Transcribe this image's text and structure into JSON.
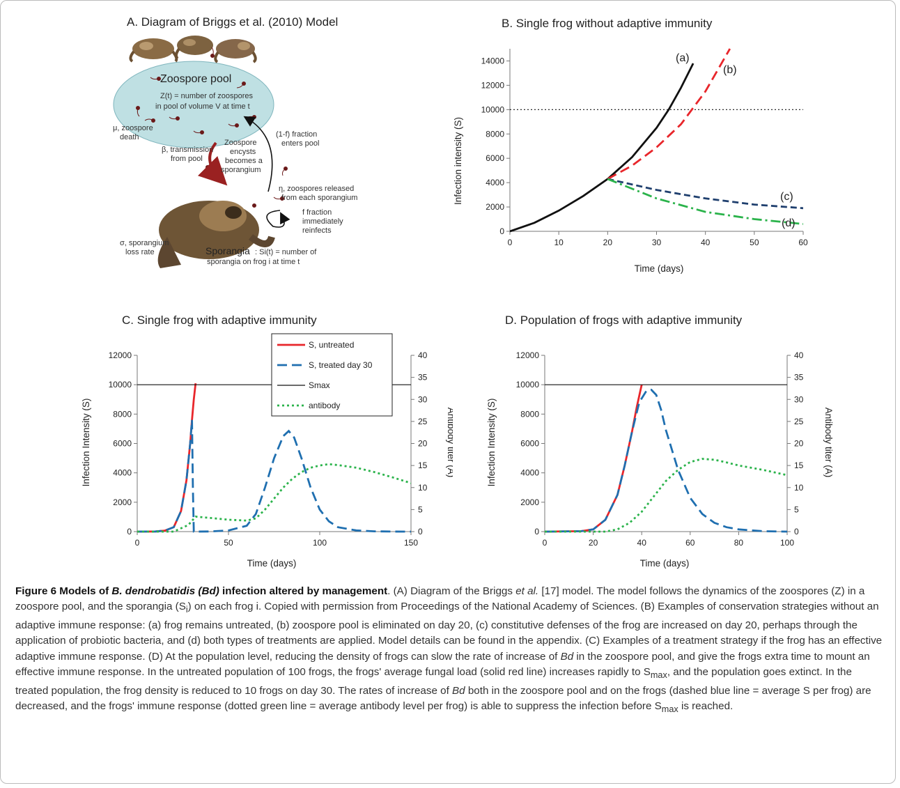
{
  "panels": {
    "a": {
      "title": "A. Diagram of Briggs et al. (2010) Model"
    },
    "b": {
      "title": "B. Single frog without adaptive immunity"
    },
    "c": {
      "title": "C. Single frog with adaptive immunity"
    },
    "d": {
      "title": "D. Population of frogs with adaptive immunity"
    }
  },
  "diagram": {
    "pool_title": "Zoospore pool",
    "pool_desc_1": "Z(t) = number of zoospores",
    "pool_desc_2": "in pool  of volume V at time t",
    "mu_1": "μ, zoospore",
    "mu_2": "death",
    "frac_1": "(1-f) fraction",
    "frac_2": "enters pool",
    "beta_1": "β, transmission",
    "beta_2": "from pool",
    "encyst_1": "Zoospore",
    "encyst_2": "encysts",
    "encyst_3": "becomes a",
    "encyst_4": "sporangium",
    "eta_1": "η, zoospores released",
    "eta_2": "from each sporangium",
    "reinf_1": "f fraction",
    "reinf_2": "immediately",
    "reinf_3": "reinfects",
    "sigma_1": "σ, sporangium",
    "sigma_2": "loss rate",
    "spor_title": "Sporangia",
    "spor_desc_1": ": Si(t) = number of",
    "spor_desc_2": "sporangia on frog i at time t"
  },
  "chart_data": [
    {
      "id": "B",
      "type": "line",
      "title": "B. Single frog without adaptive immunity",
      "xlabel": "Time (days)",
      "ylabel": "Infection intensity (S)",
      "xlim": [
        0,
        60
      ],
      "ylim": [
        0,
        15000
      ],
      "xticks": [
        0,
        10,
        20,
        30,
        40,
        50,
        60
      ],
      "yticks": [
        0,
        2000,
        4000,
        6000,
        8000,
        10000,
        12000,
        14000
      ],
      "hline": 10000,
      "series": [
        {
          "name": "(a)",
          "color": "#111111",
          "dash": "",
          "x": [
            0,
            5,
            10,
            15,
            20,
            25,
            30,
            32.5,
            35,
            37.5
          ],
          "y": [
            0,
            700,
            1700,
            2900,
            4300,
            6100,
            8500,
            10000,
            11800,
            13800
          ]
        },
        {
          "name": "(b)",
          "color": "#e8262b",
          "dash": "14,7",
          "x": [
            20,
            25,
            30,
            35,
            40,
            45
          ],
          "y": [
            4300,
            5400,
            6900,
            8800,
            11500,
            15000
          ]
        },
        {
          "name": "(c)",
          "color": "#1f3f6e",
          "dash": "9,5",
          "x": [
            20,
            30,
            40,
            50,
            60
          ],
          "y": [
            4300,
            3400,
            2700,
            2200,
            1900
          ]
        },
        {
          "name": "(d)",
          "color": "#2bb34b",
          "dash": "14,5,3,5",
          "x": [
            20,
            30,
            40,
            50,
            60
          ],
          "y": [
            4300,
            2700,
            1600,
            1000,
            600
          ]
        }
      ]
    },
    {
      "id": "C",
      "type": "line",
      "title": "C. Single frog with adaptive immunity",
      "xlabel": "Time (days)",
      "ylabel": "Infection Intensity (S)",
      "y2label": "Antibody titer (A)",
      "xlim": [
        0,
        150
      ],
      "ylim": [
        0,
        12000
      ],
      "y2lim": [
        0,
        40
      ],
      "xticks": [
        0,
        50,
        100,
        150
      ],
      "yticks": [
        0,
        2000,
        4000,
        6000,
        8000,
        10000,
        12000
      ],
      "y2ticks": [
        0,
        5,
        10,
        15,
        20,
        25,
        30,
        35,
        40
      ],
      "legend": [
        "S, untreated",
        "S, treated day 30",
        "Smax",
        "antibody"
      ],
      "series": [
        {
          "name": "S, untreated",
          "color": "#e8262b",
          "dash": "",
          "axis": "y",
          "x": [
            0,
            10,
            15,
            20,
            24,
            27,
            29,
            30,
            31,
            32
          ],
          "y": [
            0,
            10,
            60,
            300,
            1400,
            3500,
            6000,
            7600,
            9000,
            10100
          ]
        },
        {
          "name": "S, treated day 30",
          "color": "#1f6fb0",
          "dash": "14,7",
          "axis": "y",
          "x": [
            0,
            10,
            15,
            20,
            24,
            27,
            29,
            30,
            30.5,
            31,
            40,
            50,
            60,
            65,
            70,
            75,
            80,
            83,
            86,
            90,
            95,
            100,
            105,
            110,
            120,
            130,
            140,
            150
          ],
          "y": [
            0,
            10,
            60,
            300,
            1400,
            3500,
            6000,
            7600,
            3000,
            0,
            10,
            80,
            400,
            1200,
            3000,
            5000,
            6500,
            6850,
            6400,
            5000,
            3000,
            1500,
            700,
            300,
            80,
            20,
            5,
            0
          ]
        },
        {
          "name": "Smax",
          "color": "#111111",
          "dash": "",
          "axis": "y",
          "x": [
            0,
            150
          ],
          "y": [
            10000,
            10000
          ]
        },
        {
          "name": "antibody",
          "color": "#2bb34b",
          "dash": "3,4",
          "axis": "y2",
          "x": [
            0,
            20,
            28,
            32,
            40,
            50,
            60,
            65,
            70,
            75,
            80,
            85,
            90,
            95,
            100,
            105,
            110,
            120,
            130,
            140,
            150
          ],
          "y": [
            0,
            0,
            1.5,
            3.4,
            3.1,
            2.7,
            2.5,
            3,
            5,
            7.5,
            10,
            12,
            13.5,
            14.5,
            15,
            15.3,
            15.1,
            14.5,
            13.5,
            12.3,
            11
          ]
        }
      ]
    },
    {
      "id": "D",
      "type": "line",
      "title": "D. Population of frogs with adaptive immunity",
      "xlabel": "Time (days)",
      "ylabel": "Infection Intensity (S)",
      "y2label": "Antibody titer (A)",
      "xlim": [
        0,
        100
      ],
      "ylim": [
        0,
        12000
      ],
      "y2lim": [
        0,
        40
      ],
      "xticks": [
        0,
        20,
        40,
        60,
        80,
        100
      ],
      "yticks": [
        0,
        2000,
        4000,
        6000,
        8000,
        10000,
        12000
      ],
      "y2ticks": [
        0,
        5,
        10,
        15,
        20,
        25,
        30,
        35,
        40
      ],
      "series": [
        {
          "name": "S, untreated",
          "color": "#e8262b",
          "dash": "",
          "axis": "y",
          "x": [
            0,
            15,
            20,
            25,
            30,
            33,
            36,
            38,
            40
          ],
          "y": [
            0,
            30,
            150,
            800,
            2500,
            4500,
            6800,
            8500,
            10000
          ]
        },
        {
          "name": "S, treated day 30",
          "color": "#1f6fb0",
          "dash": "14,7",
          "axis": "y",
          "x": [
            0,
            15,
            20,
            25,
            30,
            33,
            36,
            39,
            42,
            44,
            46,
            48,
            50,
            55,
            60,
            65,
            70,
            75,
            80,
            90,
            100
          ],
          "y": [
            0,
            30,
            150,
            800,
            2500,
            4500,
            6800,
            8800,
            9600,
            9650,
            9300,
            8300,
            6900,
            4200,
            2300,
            1200,
            600,
            300,
            150,
            30,
            0
          ]
        },
        {
          "name": "Smax",
          "color": "#111111",
          "dash": "",
          "axis": "y",
          "x": [
            0,
            100
          ],
          "y": [
            10000,
            10000
          ]
        },
        {
          "name": "antibody",
          "color": "#2bb34b",
          "dash": "3,4",
          "axis": "y2",
          "x": [
            0,
            25,
            30,
            35,
            40,
            45,
            50,
            55,
            60,
            65,
            70,
            75,
            80,
            90,
            100
          ],
          "y": [
            0,
            0,
            0.5,
            2,
            4.5,
            8,
            11.5,
            14,
            15.8,
            16.5,
            16.3,
            15.7,
            15,
            14,
            12.8
          ]
        }
      ]
    }
  ],
  "caption": {
    "fig_label": "Figure 6 Models of ",
    "fig_species": "B. dendrobatidis (Bd)",
    "fig_rest": " infection altered by management",
    "t1": ". (A) Diagram of the Briggs ",
    "etal": "et al.",
    "t2": " [17] model. The model follows the dynamics of the zoospores (Z) in a zoospore pool, and the sporangia (S",
    "sub_i": "i",
    "t3": ") on each frog i. Copied with permission from Proceedings of the National Academy of Sciences. (B) Examples of conservation strategies without an adaptive immune response: (a) frog remains untreated, (b) zoospore pool is eliminated on day 20, (c) constitutive defenses of the frog are increased on day 20, perhaps through the application of probiotic bacteria, and (d) both types of treatments are applied. Model details can be found in the appendix. (C) Examples of a treatment strategy if the frog has an effective adaptive immune response. (D) At the population level, reducing the density of frogs can slow the rate of increase of ",
    "bd1": "Bd",
    "t4": " in the zoospore pool, and give the frogs extra time to mount an effective immune response. In the untreated population of 100 frogs, the frogs' average fungal load (solid red line) increases rapidly to S",
    "max1": "max",
    "t5": ", and the population goes extinct. In the treated population, the frog density is reduced to 10 frogs on day 30. The rates of increase of ",
    "bd2": "Bd",
    "t6": " both in the zoospore pool and on the frogs (dashed blue line = average S per frog) are decreased, and the frogs' immune response (dotted green line = average antibody level per frog) is able to suppress the infection before S",
    "max2": "max",
    "t7": " is reached."
  }
}
